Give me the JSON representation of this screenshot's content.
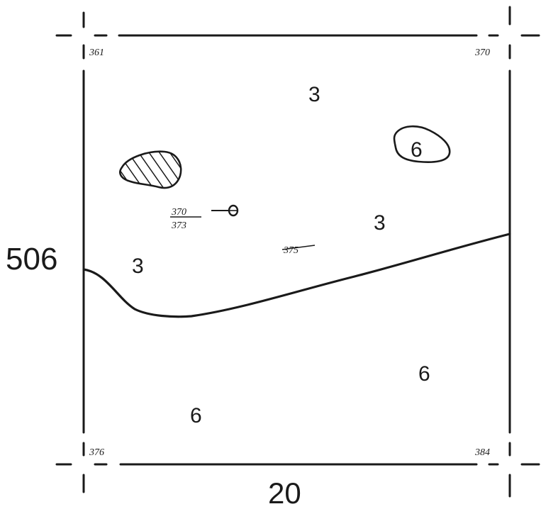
{
  "map": {
    "grid_labels": {
      "northing": "506",
      "easting": "20"
    },
    "corner_elevations": {
      "top_left": "361",
      "top_right": "370",
      "bottom_left": "376",
      "bottom_right": "384"
    },
    "unit_labels": {
      "top_center": "3",
      "small_polygon": "6",
      "mid_right": "3",
      "left": "3",
      "lower_right": "6",
      "lower_left": "6"
    },
    "point_elevations": {
      "point_fraction_numerator": "370",
      "point_fraction_denominator": "373",
      "center_spot": "375"
    },
    "colors": {
      "ink": "#1a1a1a",
      "background": "#ffffff"
    }
  }
}
